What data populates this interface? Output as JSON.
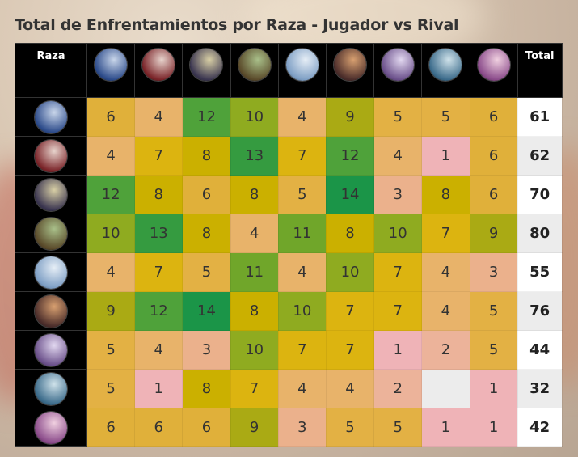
{
  "chart_data": {
    "type": "heatmap",
    "title": "Total de Enfrentamientos por Raza - Jugador vs Rival",
    "row_header": "Raza",
    "total_header": "Total",
    "races": [
      "raza-1",
      "raza-2",
      "raza-3",
      "raza-4",
      "raza-5",
      "raza-6",
      "raza-7",
      "raza-8",
      "raza-9"
    ],
    "matrix": [
      [
        6,
        4,
        12,
        10,
        4,
        9,
        5,
        5,
        6
      ],
      [
        4,
        7,
        8,
        13,
        7,
        12,
        4,
        1,
        6
      ],
      [
        12,
        8,
        6,
        8,
        5,
        14,
        3,
        8,
        6
      ],
      [
        10,
        13,
        8,
        4,
        11,
        8,
        10,
        7,
        9
      ],
      [
        4,
        7,
        5,
        11,
        4,
        10,
        7,
        4,
        3
      ],
      [
        9,
        12,
        14,
        8,
        10,
        7,
        7,
        4,
        5
      ],
      [
        5,
        4,
        3,
        10,
        7,
        7,
        1,
        2,
        5
      ],
      [
        5,
        1,
        8,
        7,
        4,
        4,
        2,
        null,
        1
      ],
      [
        6,
        6,
        6,
        9,
        3,
        5,
        5,
        1,
        1
      ]
    ],
    "totals": [
      61,
      62,
      70,
      80,
      55,
      76,
      44,
      32,
      42
    ],
    "color_scale": {
      "1": "#efb3b7",
      "2": "#ecb39a",
      "3": "#ebb18c",
      "4": "#e8b36a",
      "5": "#e3b144",
      "6": "#e0b03a",
      "7": "#dcb410",
      "8": "#cbb000",
      "9": "#aaaa14",
      "10": "#8fab20",
      "11": "#70a62a",
      "12": "#4fa23a",
      "13": "#359b40",
      "14": "#1b9548",
      "empty": "#ececec"
    },
    "avatar_colors": [
      [
        "#c9d6ea",
        "#2b4a8a"
      ],
      [
        "#e7d3cc",
        "#7a2328"
      ],
      [
        "#d8cfa5",
        "#3a3550"
      ],
      [
        "#a9c08a",
        "#5a4a2a"
      ],
      [
        "#e6eef6",
        "#7d9ec4"
      ],
      [
        "#d8a070",
        "#4a2c2a"
      ],
      [
        "#e2d8f0",
        "#6a4f8a"
      ],
      [
        "#cfe2ea",
        "#3a6a8a"
      ],
      [
        "#f0d0e0",
        "#8a4a8a"
      ]
    ]
  }
}
